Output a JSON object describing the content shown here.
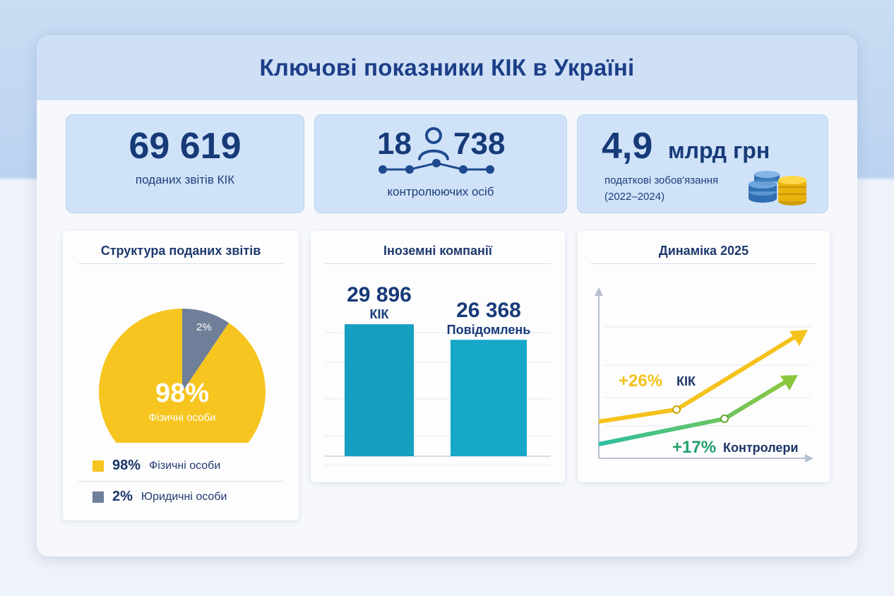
{
  "title": "Ключові показники КІК в Україні",
  "stats": {
    "reports": {
      "value": "69 619",
      "label": "поданих звітів КІК"
    },
    "persons": {
      "value_left": "18",
      "value_right": "738",
      "label": "контролюючих осіб"
    },
    "tax": {
      "value": "4,9",
      "unit": "млрд грн",
      "label_line1": "податкові зобов'язання",
      "label_line2": "(2022–2024)"
    }
  },
  "panels": {
    "structure": {
      "title": "Структура поданих звітів",
      "center_pct": "98%",
      "center_label": "Фізичні особи",
      "slice_small_label": "2%",
      "legend": [
        {
          "pct": "98%",
          "label": "Фізичні особи",
          "color": "#f7c520"
        },
        {
          "pct": "2%",
          "label": "Юридичні особи",
          "color": "#6f7f99"
        }
      ]
    },
    "foreign": {
      "title": "Іноземні компанії",
      "bars": [
        {
          "value_text": "29 896",
          "label": "КІК"
        },
        {
          "value_text": "26 368",
          "label": "Повідомлень"
        }
      ]
    },
    "dynamics": {
      "title": "Динаміка 2025",
      "series": [
        {
          "pct": "+26%",
          "name": "КІК",
          "color": "#f4c21b"
        },
        {
          "pct": "+17%",
          "name": "Контролери",
          "color": "#22a06b"
        }
      ]
    }
  },
  "colors": {
    "title": "#1d3f88",
    "accent_blue": "#16a2c8",
    "yellow": "#f7c520",
    "slate": "#6f7f99",
    "green": "#22a06b"
  },
  "chart_data": [
    {
      "type": "pie",
      "title": "Структура поданих звітів",
      "categories": [
        "Фізичні особи",
        "Юридичні особи"
      ],
      "values": [
        98,
        2
      ],
      "units": "%"
    },
    {
      "type": "bar",
      "title": "Іноземні компанії",
      "categories": [
        "КІК",
        "Повідомлень"
      ],
      "values": [
        29896,
        26368
      ],
      "ylim": [
        0,
        36000
      ],
      "grid": true
    },
    {
      "type": "line",
      "title": "Динаміка 2025",
      "series": [
        {
          "name": "КІК",
          "growth_pct": 26
        },
        {
          "name": "Контролери",
          "growth_pct": 17
        }
      ],
      "grid": true
    }
  ]
}
